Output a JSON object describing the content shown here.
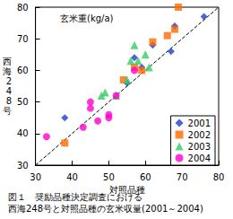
{
  "chart_data": {
    "type": "scatter",
    "title": "図１　奨励品種決定調査における\n西海248号と対照品種の玄米収量(2001～2004)",
    "annotation": "玄米重(kg/a)",
    "x_label": "対照品種",
    "y_label": "西海248号",
    "xlim": [
      30,
      80
    ],
    "xticks": [
      30,
      40,
      50,
      60,
      70,
      80
    ],
    "ylim": [
      30,
      80
    ],
    "yticks": [
      30,
      40,
      50,
      60,
      70,
      80
    ],
    "grid": false,
    "legend": "lower right",
    "series": [
      {
        "name": "2001",
        "color": "#1e3cd2",
        "marker": "diamond",
        "x": [
          38,
          55,
          57,
          59,
          62,
          67,
          68,
          76
        ],
        "values": [
          45,
          56,
          64,
          61,
          68,
          66,
          74,
          77
        ]
      },
      {
        "name": "2002",
        "color": "#ff6a00",
        "marker": "square",
        "x": [
          38,
          54,
          57,
          59,
          62,
          66,
          68,
          69
        ],
        "values": [
          37,
          57,
          61,
          60,
          69,
          71,
          73,
          80
        ]
      },
      {
        "name": "2003",
        "color": "#33cc66",
        "marker": "triangle",
        "x": [
          48,
          49,
          52,
          55,
          56,
          57,
          58,
          60,
          61
        ],
        "values": [
          52,
          53,
          52,
          57,
          63,
          68,
          63,
          65,
          61
        ]
      },
      {
        "name": "2004",
        "color": "#ff00cc",
        "marker": "circle",
        "x": [
          33,
          43,
          45,
          45,
          47,
          50,
          50,
          52,
          57
        ],
        "values": [
          39,
          42,
          48,
          50,
          44,
          46,
          45,
          52,
          60
        ]
      }
    ],
    "reference_line": {
      "x": [
        30,
        80
      ],
      "values": [
        30,
        80
      ],
      "line_style": "dashed",
      "color": "#000000"
    }
  }
}
